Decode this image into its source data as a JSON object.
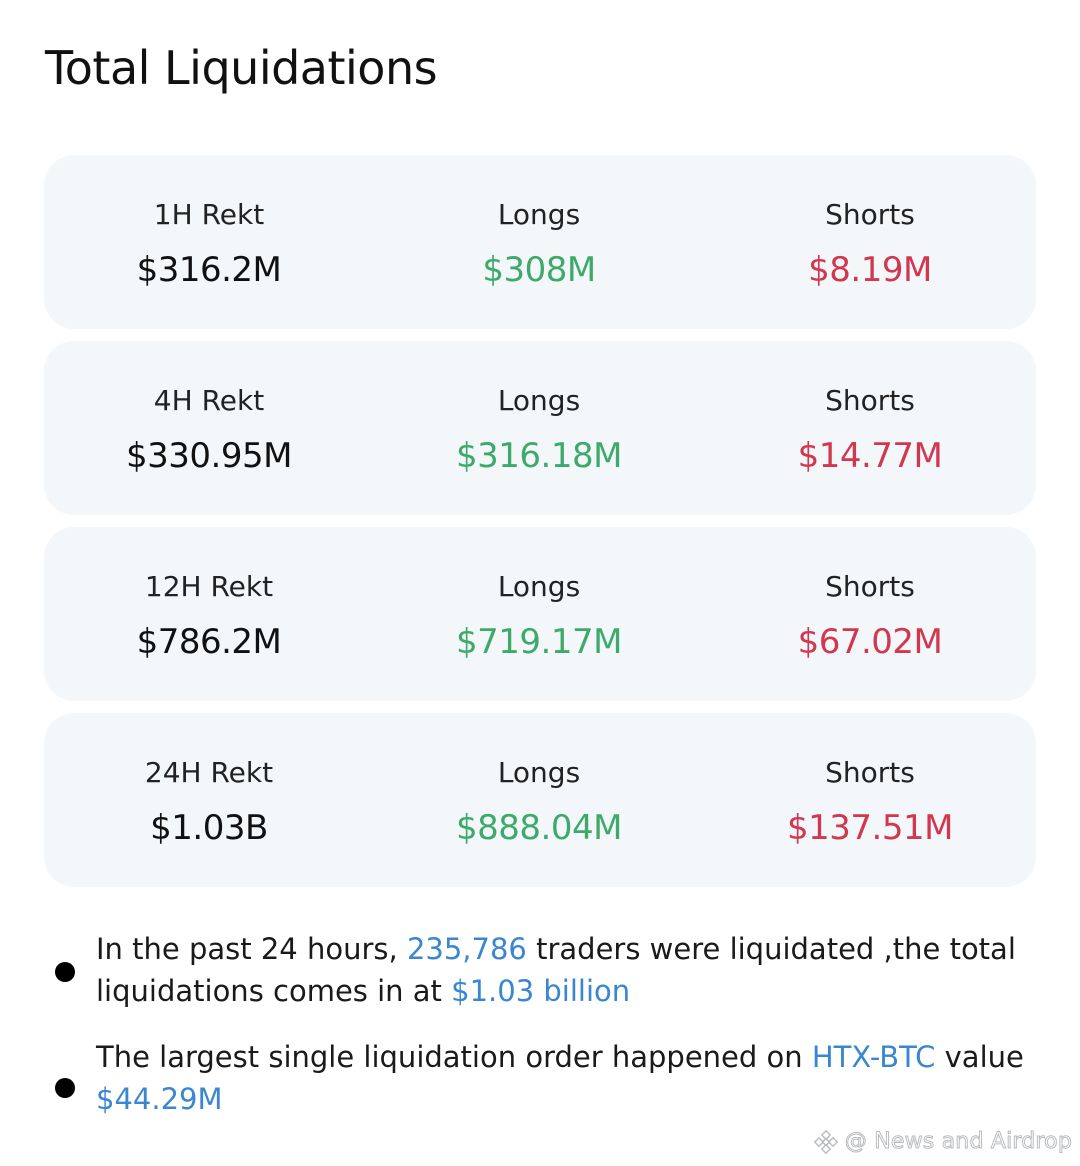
{
  "header": {
    "title": "Total Liquidations"
  },
  "cards": [
    {
      "period_label": "1H Rekt",
      "total": "$316.2M",
      "longs_label": "Longs",
      "longs_value": "$308M",
      "shorts_label": "Shorts",
      "shorts_value": "$8.19M"
    },
    {
      "period_label": "4H Rekt",
      "total": "$330.95M",
      "longs_label": "Longs",
      "longs_value": "$316.18M",
      "shorts_label": "Shorts",
      "shorts_value": "$14.77M"
    },
    {
      "period_label": "12H Rekt",
      "total": "$786.2M",
      "longs_label": "Longs",
      "longs_value": "$719.17M",
      "shorts_label": "Shorts",
      "shorts_value": "$67.02M"
    },
    {
      "period_label": "24H Rekt",
      "total": "$1.03B",
      "longs_label": "Longs",
      "longs_value": "$888.04M",
      "shorts_label": "Shorts",
      "shorts_value": "$137.51M"
    }
  ],
  "notes": [
    {
      "part1": "In the past 24 hours, ",
      "hl1": "235,786",
      "part2": " traders were liquidated ,the total liquidations comes in at ",
      "hl2": "$1.03 billion"
    },
    {
      "part1": "The largest single liquidation order happened on ",
      "hl1": "HTX-BTC",
      "part2": " value ",
      "hl2": "$44.29M"
    }
  ],
  "watermark": {
    "text": "@ News and Airdrop",
    "icon": "binance-logo-icon"
  },
  "colors": {
    "longs": "#3daa6c",
    "shorts": "#d1374f",
    "highlight": "#3b86d1",
    "card_bg": "#f4f7fa"
  }
}
